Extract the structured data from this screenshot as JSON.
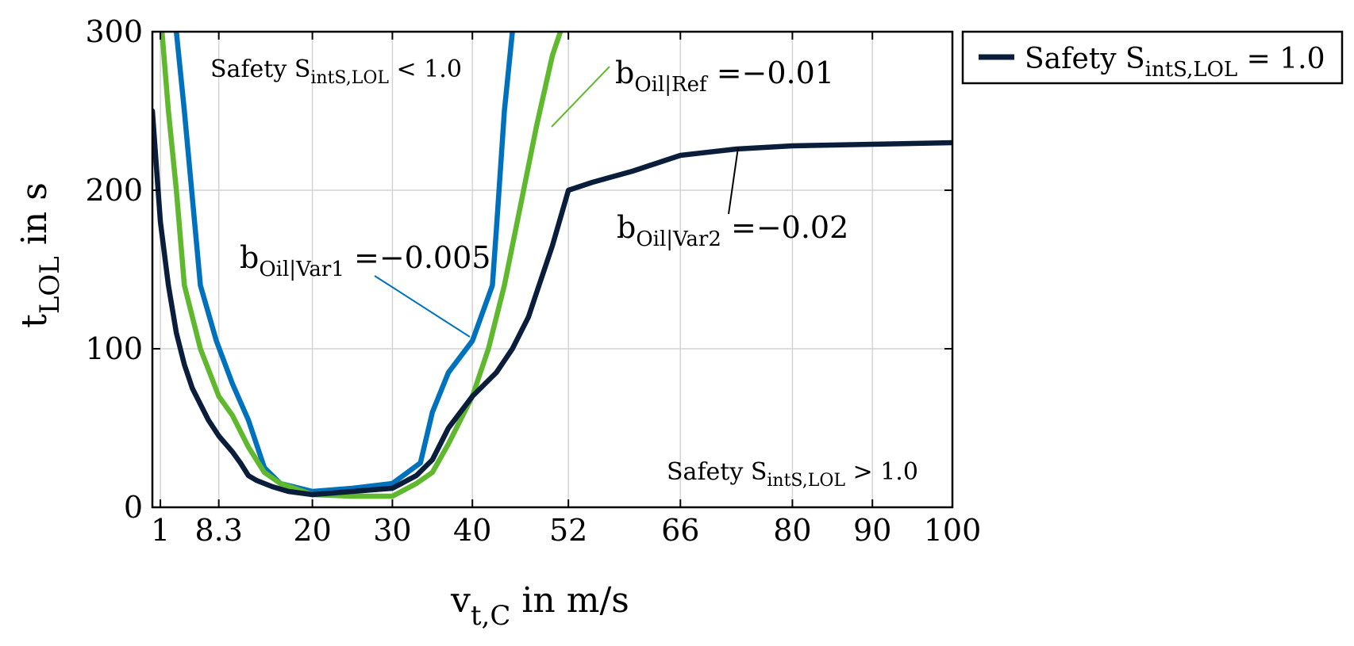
{
  "chart_data": {
    "type": "line",
    "title": "",
    "xlabel": {
      "main": "v",
      "sub": "t,C",
      "tail": " in m/s"
    },
    "ylabel": {
      "main": "t",
      "sub": "LOL",
      "tail": " in s"
    },
    "xlim": [
      0,
      100
    ],
    "ylim": [
      0,
      300
    ],
    "x_ticks": [
      1,
      8.3,
      20,
      30,
      40,
      52,
      66,
      80,
      90,
      100
    ],
    "y_ticks": [
      0,
      100,
      200,
      300
    ],
    "grid": true,
    "legend": {
      "placement": "outside-top-right",
      "text": "Safety S",
      "sub": "intS,LOL",
      "tail": " = 1.0"
    },
    "region_labels": [
      {
        "id": "upper",
        "text": "Safety S",
        "sub": "intS,LOL",
        "tail": " < 1.0"
      },
      {
        "id": "lower",
        "text": "Safety S",
        "sub": "intS,LOL",
        "tail": " > 1.0"
      }
    ],
    "series": [
      {
        "name": "b_Oil|Var1 = −0.005",
        "label": {
          "text": "b",
          "sub": "Oil|Var1",
          "tail": " =−0.005"
        },
        "color": "#0072BD",
        "x": [
          3,
          4,
          6,
          8,
          10,
          12,
          14,
          16,
          20,
          25,
          30,
          33.5,
          35,
          37,
          40,
          42.5,
          43,
          44,
          45
        ],
        "y": [
          300,
          250,
          140,
          105,
          78,
          55,
          25,
          15,
          10,
          12,
          15,
          28,
          60,
          85,
          105,
          140,
          175,
          250,
          300
        ]
      },
      {
        "name": "b_Oil|Ref = −0.01",
        "label": {
          "text": "b",
          "sub": "Oil|Ref",
          "tail": " =−0.01"
        },
        "color": "#5FB82E",
        "x": [
          1.2,
          2,
          3,
          4,
          6,
          8.3,
          10,
          12,
          14,
          16,
          20,
          25,
          30,
          33,
          35,
          37,
          40,
          42,
          44,
          46,
          48,
          50,
          51
        ],
        "y": [
          300,
          250,
          200,
          140,
          100,
          70,
          58,
          38,
          22,
          15,
          8,
          7,
          7,
          15,
          22,
          40,
          70,
          100,
          140,
          190,
          240,
          285,
          300
        ]
      },
      {
        "name": "b_Oil|Var2 = −0.02",
        "label": {
          "text": "b",
          "sub": "Oil|Var2",
          "tail": " =−0.02"
        },
        "color": "#0A1E3C",
        "x": [
          0,
          1,
          2,
          3,
          4,
          5,
          6,
          7,
          8.3,
          10,
          11,
          12,
          13,
          15,
          17,
          20,
          25,
          30,
          33,
          35,
          37,
          40,
          43,
          45,
          47,
          48,
          50,
          52,
          55,
          60,
          66,
          73,
          80,
          90,
          100
        ],
        "y": [
          250,
          180,
          140,
          110,
          90,
          75,
          65,
          55,
          45,
          35,
          28,
          20,
          17,
          13,
          10,
          8,
          10,
          12,
          20,
          30,
          50,
          70,
          85,
          100,
          120,
          135,
          165,
          200,
          205,
          212,
          222,
          226,
          228,
          229,
          230
        ]
      }
    ]
  }
}
